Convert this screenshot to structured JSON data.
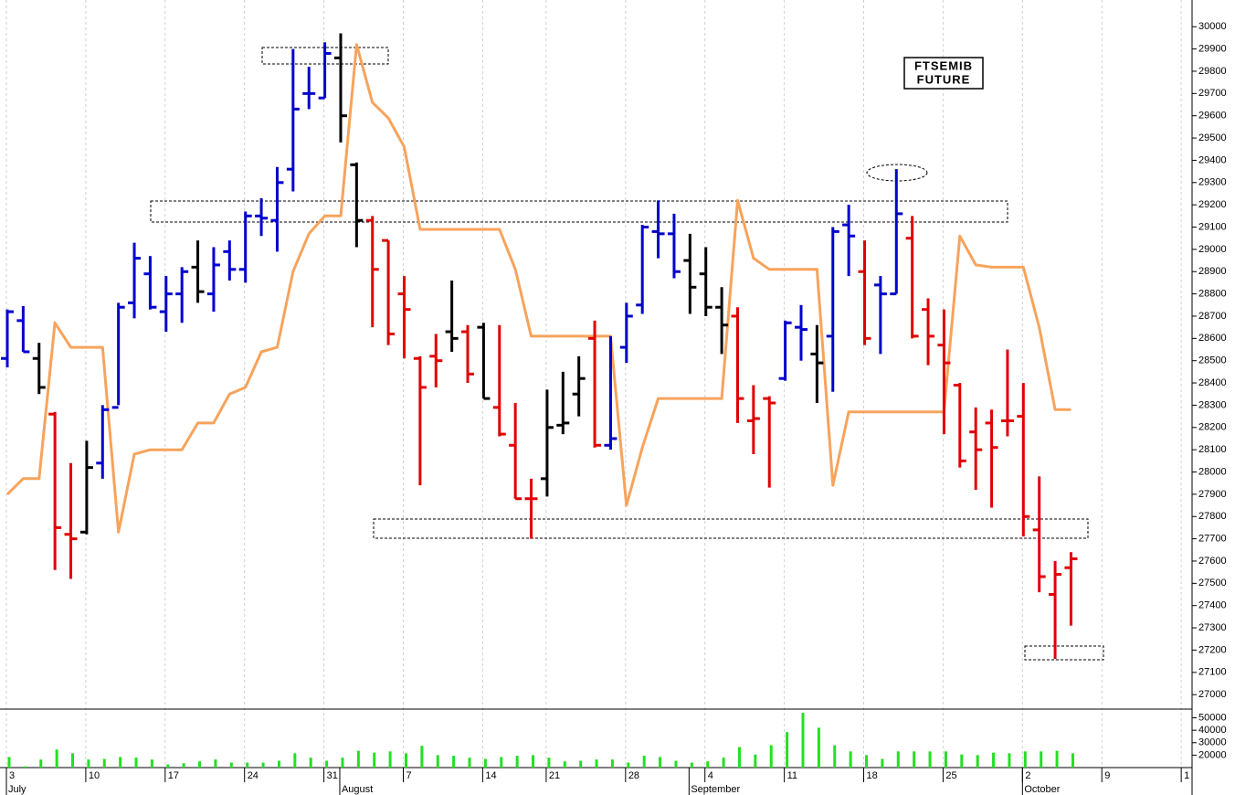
{
  "chart_data": {
    "type": "ohlc",
    "title_lines": [
      "FTSEMIB",
      "FUTURE"
    ],
    "categories": [
      "3",
      null,
      null,
      null,
      null,
      "10",
      null,
      null,
      null,
      null,
      "17",
      null,
      null,
      null,
      null,
      "24",
      null,
      null,
      null,
      null,
      "31",
      null,
      null,
      null,
      null,
      "7",
      null,
      null,
      null,
      null,
      "14",
      null,
      null,
      null,
      "21",
      null,
      null,
      null,
      null,
      "28",
      null,
      null,
      null,
      null,
      "4",
      null,
      null,
      null,
      null,
      "11",
      null,
      null,
      null,
      null,
      "18",
      null,
      null,
      null,
      null,
      "25",
      null,
      null,
      null,
      null,
      "2",
      null,
      null,
      null,
      null,
      "9",
      null,
      null,
      null,
      null,
      "1"
    ],
    "months": [
      {
        "label": "July",
        "category": 0
      },
      {
        "label": "August",
        "category": 21
      },
      {
        "label": "September",
        "category": 43
      },
      {
        "label": "October",
        "category": 64
      }
    ],
    "ylim": [
      26935,
      30120
    ],
    "yticks": [
      27000,
      27100,
      27200,
      27300,
      27400,
      27500,
      27600,
      27700,
      27800,
      27900,
      28000,
      28100,
      28200,
      28300,
      28400,
      28500,
      28600,
      28700,
      28800,
      28900,
      29000,
      29100,
      29200,
      29300,
      29400,
      29500,
      29600,
      29700,
      29800,
      29900,
      30000
    ],
    "grid": true,
    "ohlc": {
      "open": [
        28510,
        28680,
        28510,
        28260,
        27720,
        27730,
        28040,
        28290,
        28760,
        28890,
        28720,
        28800,
        28920,
        28800,
        28990,
        28910,
        29150,
        29130,
        29360,
        29700,
        29680,
        29860,
        29380,
        29130,
        29040,
        28800,
        28510,
        28520,
        28630,
        28630,
        28650,
        28290,
        28120,
        27880,
        27970,
        28210,
        28350,
        28600,
        28120,
        28560,
        28750,
        29080,
        29070,
        28950,
        28890,
        28740,
        28700,
        28230,
        28330,
        28420,
        28650,
        28530,
        28610,
        29110,
        28900,
        28840,
        28800,
        29050,
        28730,
        28570,
        28390,
        28180,
        28220,
        28230,
        28250,
        27740,
        27450,
        27570,
        null,
        null,
        null,
        null,
        null,
        null,
        null
      ],
      "high": [
        28730,
        28745,
        28580,
        28270,
        28040,
        28140,
        28300,
        28760,
        29030,
        28970,
        28880,
        28920,
        29040,
        29010,
        29040,
        29170,
        29230,
        29370,
        29900,
        29820,
        29930,
        29970,
        29390,
        29150,
        29040,
        28880,
        28520,
        28620,
        28860,
        28660,
        28670,
        28660,
        28310,
        27970,
        28370,
        28450,
        28520,
        28680,
        28610,
        28760,
        29110,
        29220,
        29160,
        29070,
        29010,
        28830,
        28740,
        28390,
        28340,
        28680,
        28750,
        28660,
        29100,
        29200,
        29040,
        28880,
        29360,
        29150,
        28780,
        28730,
        28400,
        28290,
        28280,
        28550,
        28400,
        27980,
        27600,
        27640,
        null,
        null,
        null,
        null,
        null,
        null,
        null
      ],
      "low": [
        28470,
        28540,
        28350,
        27560,
        27520,
        27720,
        27970,
        28300,
        28690,
        28730,
        28630,
        28670,
        28760,
        28720,
        28860,
        28850,
        29060,
        28990,
        29260,
        29630,
        29680,
        29480,
        29010,
        28650,
        28570,
        28510,
        27940,
        28380,
        28540,
        28400,
        28330,
        28160,
        27880,
        27700,
        27890,
        28170,
        28250,
        28110,
        28100,
        28490,
        28710,
        28960,
        28870,
        28710,
        28700,
        28530,
        28220,
        28080,
        27930,
        28410,
        28500,
        28310,
        28360,
        28880,
        28570,
        28530,
        28800,
        28600,
        28480,
        28170,
        28020,
        27920,
        27840,
        28160,
        27710,
        27460,
        27160,
        27310,
        null,
        null,
        null,
        null,
        null,
        null,
        null
      ],
      "close": [
        28720,
        28540,
        28380,
        27750,
        27700,
        28020,
        28280,
        28740,
        28960,
        28740,
        28800,
        28900,
        28810,
        28930,
        28910,
        29150,
        29140,
        29300,
        29630,
        29700,
        29880,
        29600,
        29130,
        28910,
        28620,
        28730,
        28380,
        28500,
        28600,
        28440,
        28330,
        28170,
        27880,
        27880,
        28200,
        28220,
        28420,
        28120,
        28150,
        28700,
        29100,
        29070,
        28900,
        28830,
        28740,
        28660,
        28330,
        28240,
        28310,
        28670,
        28640,
        28490,
        29080,
        29060,
        28600,
        28800,
        29160,
        28610,
        28610,
        28490,
        28050,
        28100,
        28110,
        28230,
        27800,
        27530,
        27540,
        27610,
        null,
        null,
        null,
        null,
        null,
        null,
        null
      ],
      "colors": [
        "#0000cc",
        "#0000cc",
        "#000000",
        "#e00000",
        "#e00000",
        "#000000",
        "#0000cc",
        "#0000cc",
        "#0000cc",
        "#0000cc",
        "#0000cc",
        "#0000cc",
        "#000000",
        "#0000cc",
        "#0000cc",
        "#0000cc",
        "#0000cc",
        "#0000cc",
        "#0000cc",
        "#0000cc",
        "#0000cc",
        "#000000",
        "#000000",
        "#e00000",
        "#e00000",
        "#e00000",
        "#e00000",
        "#e00000",
        "#000000",
        "#e00000",
        "#000000",
        "#e00000",
        "#e00000",
        "#e00000",
        "#000000",
        "#000000",
        "#000000",
        "#e00000",
        "#0000cc",
        "#0000cc",
        "#0000cc",
        "#0000cc",
        "#0000cc",
        "#000000",
        "#000000",
        "#000000",
        "#e00000",
        "#e00000",
        "#e00000",
        "#0000cc",
        "#0000cc",
        "#000000",
        "#0000cc",
        "#0000cc",
        "#e00000",
        "#0000cc",
        "#0000cc",
        "#e00000",
        "#e00000",
        "#e00000",
        "#e00000",
        "#e00000",
        "#e00000",
        "#e00000",
        "#e00000",
        "#e00000",
        "#e00000",
        "#e00000",
        null,
        null,
        null,
        null,
        null,
        null,
        null
      ]
    },
    "line": {
      "color": "#f7a35c",
      "values": [
        27900,
        27970,
        27970,
        28670,
        28560,
        28560,
        28560,
        27730,
        28080,
        28100,
        28100,
        28100,
        28220,
        28220,
        28350,
        28380,
        28540,
        28560,
        28900,
        29070,
        29150,
        29150,
        29920,
        29660,
        29590,
        29460,
        29090,
        29090,
        29090,
        29090,
        29090,
        29090,
        28910,
        28610,
        28610,
        28610,
        28610,
        28610,
        28610,
        27850,
        28110,
        28330,
        28330,
        28330,
        28330,
        28330,
        29220,
        28960,
        28910,
        28910,
        28910,
        28910,
        27940,
        28270,
        28270,
        28270,
        28270,
        28270,
        28270,
        28270,
        29060,
        28930,
        28920,
        28920,
        28920,
        28650,
        28280,
        28280,
        null,
        null,
        null,
        null,
        null,
        null,
        null
      ]
    },
    "volume": {
      "color": "#22e022",
      "ylim": [
        10000,
        57000
      ],
      "yticks": [
        20000,
        30000,
        40000,
        50000
      ],
      "values": [
        18500,
        11000,
        16500,
        24500,
        21500,
        16500,
        17000,
        18500,
        18000,
        16500,
        12500,
        13500,
        15000,
        16500,
        14000,
        14000,
        14000,
        15500,
        21500,
        18000,
        15500,
        18000,
        23500,
        22000,
        23000,
        21500,
        27500,
        20000,
        19500,
        18000,
        17000,
        18500,
        19500,
        20000,
        18000,
        15000,
        15500,
        16500,
        16500,
        14000,
        19500,
        18500,
        15500,
        14000,
        15000,
        18000,
        26500,
        20500,
        28000,
        38500,
        54000,
        42000,
        28000,
        23000,
        20000,
        17000,
        23000,
        23000,
        23000,
        23000,
        20500,
        20000,
        22000,
        21500,
        23000,
        23000,
        23500,
        21500,
        null,
        null,
        null,
        null,
        null,
        null,
        null
      ]
    }
  }
}
